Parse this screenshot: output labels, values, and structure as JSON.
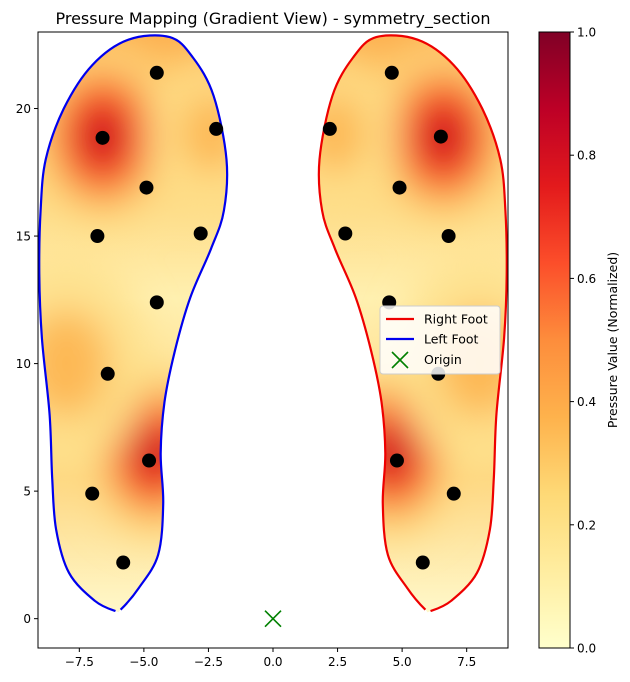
{
  "chart_data": {
    "type": "heatmap",
    "title": "Pressure Mapping (Gradient View) - symmetry_section",
    "xlabel": "",
    "ylabel": "",
    "xlim": [
      -9.1,
      9.1
    ],
    "ylim": [
      -1.15,
      23.0
    ],
    "x_ticks": [
      -7.5,
      -5.0,
      -2.5,
      0.0,
      2.5,
      5.0,
      7.5
    ],
    "x_tick_labels": [
      "−7.5",
      "−5.0",
      "−2.5",
      "0.0",
      "2.5",
      "5.0",
      "7.5"
    ],
    "y_ticks": [
      0,
      5,
      10,
      15,
      20
    ],
    "y_tick_labels": [
      "0",
      "5",
      "10",
      "15",
      "20"
    ],
    "grid": false,
    "legend_position": "center-right",
    "colormap": "YlOrRd",
    "colors": {
      "right_foot": "#ee0000",
      "left_foot": "#0000ee",
      "origin": "#008000",
      "sensor": "#000000"
    },
    "colorbar": {
      "label": "Pressure Value (Normalized)",
      "min": 0.0,
      "max": 1.0,
      "ticks": [
        0.0,
        0.2,
        0.4,
        0.6,
        0.8,
        1.0
      ],
      "tick_labels": [
        "0.0",
        "0.2",
        "0.4",
        "0.6",
        "0.8",
        "1.0"
      ]
    },
    "series": [
      {
        "name": "Right Foot",
        "kind": "outline"
      },
      {
        "name": "Left Foot",
        "kind": "outline"
      },
      {
        "name": "Origin",
        "kind": "marker",
        "marker": "x",
        "x": 0,
        "y": 0
      }
    ],
    "outline_left": [
      [
        -6.1,
        0.3
      ],
      [
        -6.9,
        0.7
      ],
      [
        -7.9,
        1.8
      ],
      [
        -8.4,
        3.5
      ],
      [
        -8.55,
        5.5
      ],
      [
        -8.65,
        8.0
      ],
      [
        -8.95,
        11.0
      ],
      [
        -9.05,
        13.5
      ],
      [
        -9.0,
        16.0
      ],
      [
        -8.8,
        18.0
      ],
      [
        -8.1,
        20.0
      ],
      [
        -7.0,
        21.7
      ],
      [
        -5.6,
        22.7
      ],
      [
        -4.0,
        22.8
      ],
      [
        -3.1,
        22.0
      ],
      [
        -2.3,
        20.5
      ],
      [
        -1.8,
        18.0
      ],
      [
        -1.9,
        16.0
      ],
      [
        -2.4,
        14.5
      ],
      [
        -3.2,
        12.6
      ],
      [
        -3.8,
        10.5
      ],
      [
        -4.2,
        8.5
      ],
      [
        -4.35,
        6.5
      ],
      [
        -4.25,
        4.5
      ],
      [
        -4.45,
        2.5
      ],
      [
        -5.2,
        1.2
      ],
      [
        -5.9,
        0.35
      ]
    ],
    "heat_regions": [
      {
        "x": -6.6,
        "y": 18.9,
        "intensity": 1.0,
        "spread": 1.9
      },
      {
        "x": -4.6,
        "y": 6.5,
        "intensity": 1.0,
        "spread": 1.8
      },
      {
        "x": -2.4,
        "y": 19.0,
        "intensity": 0.35,
        "spread": 1.6
      },
      {
        "x": -8.0,
        "y": 10.0,
        "intensity": 0.3,
        "spread": 2.2
      }
    ],
    "sensors_left": [
      [
        -4.5,
        21.4
      ],
      [
        -6.6,
        18.85
      ],
      [
        -2.2,
        19.2
      ],
      [
        -4.9,
        16.9
      ],
      [
        -6.8,
        15.0
      ],
      [
        -2.8,
        15.1
      ],
      [
        -4.5,
        12.4
      ],
      [
        -6.4,
        9.6
      ],
      [
        -4.8,
        6.2
      ],
      [
        -7.0,
        4.9
      ],
      [
        -5.8,
        2.2
      ]
    ],
    "sensors_right": [
      [
        4.6,
        21.4
      ],
      [
        2.2,
        19.2
      ],
      [
        6.5,
        18.9
      ],
      [
        4.9,
        16.9
      ],
      [
        2.8,
        15.1
      ],
      [
        6.8,
        15.0
      ],
      [
        4.5,
        12.4
      ],
      [
        6.4,
        9.6
      ],
      [
        4.8,
        6.2
      ],
      [
        7.0,
        4.9
      ],
      [
        5.8,
        2.2
      ]
    ]
  }
}
